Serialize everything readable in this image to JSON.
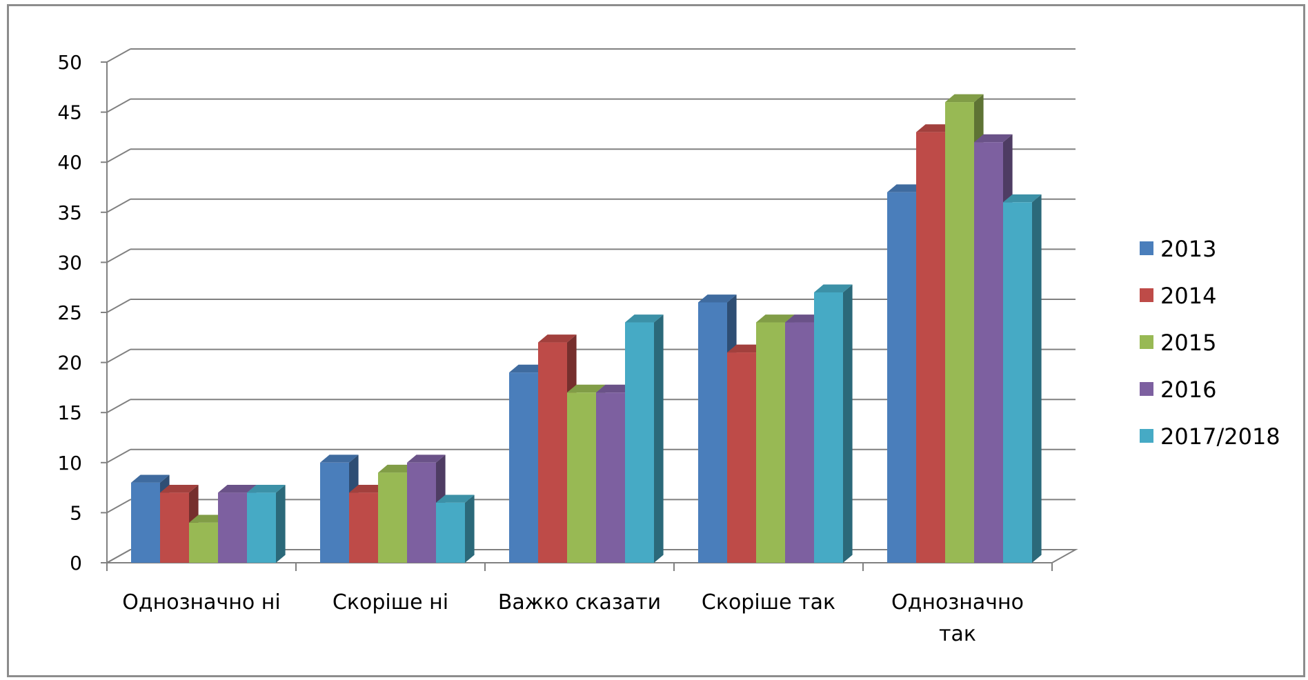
{
  "chart_data": {
    "type": "bar",
    "title": "",
    "xlabel": "",
    "ylabel": "",
    "ylim": [
      0,
      50
    ],
    "yticks": [
      0,
      5,
      10,
      15,
      20,
      25,
      30,
      35,
      40,
      45,
      50
    ],
    "grid": true,
    "legend_position": "right",
    "categories": [
      [
        "Однозначно ні"
      ],
      [
        "Скоріше ні"
      ],
      [
        "Важко сказати"
      ],
      [
        "Скоріше так"
      ],
      [
        "Однозначно",
        "так"
      ]
    ],
    "series": [
      {
        "name": "2013",
        "color": "#4a7ebb",
        "values": [
          8,
          10,
          19,
          26,
          37
        ]
      },
      {
        "name": "2014",
        "color": "#be4b48",
        "values": [
          7,
          7,
          22,
          21,
          43
        ]
      },
      {
        "name": "2015",
        "color": "#98b954",
        "values": [
          4,
          9,
          17,
          24,
          46
        ]
      },
      {
        "name": "2016",
        "color": "#7d60a0",
        "values": [
          7,
          10,
          17,
          24,
          42
        ]
      },
      {
        "name": "2017/2018",
        "color": "#46aac5",
        "values": [
          7,
          6,
          24,
          27,
          36
        ]
      }
    ]
  }
}
